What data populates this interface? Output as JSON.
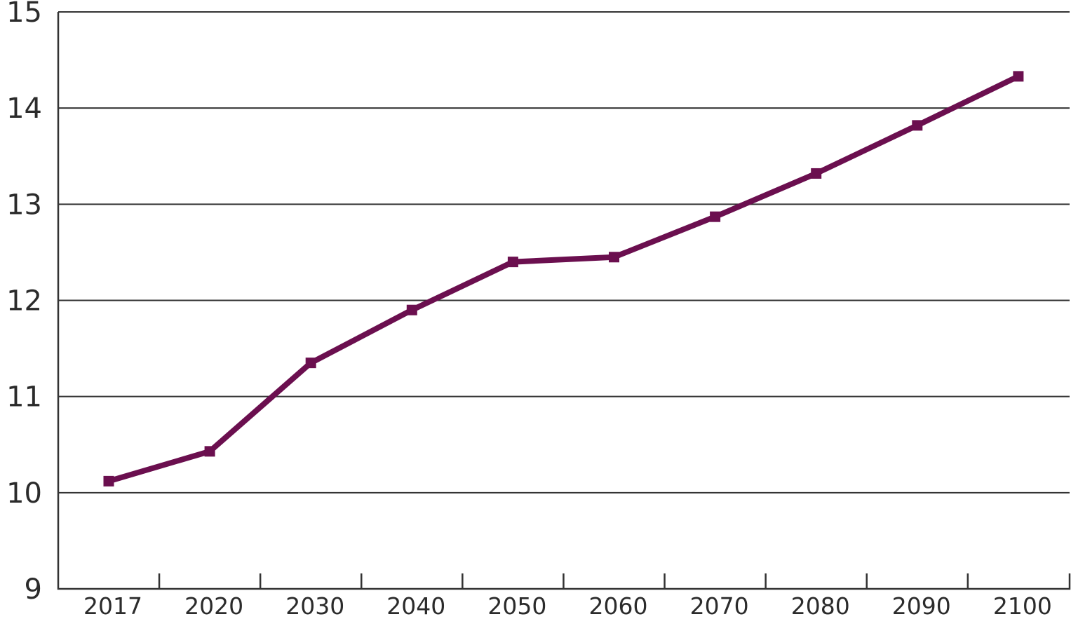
{
  "chart_data": {
    "type": "line",
    "categories": [
      "2017",
      "2020",
      "2030",
      "2040",
      "2050",
      "2060",
      "2070",
      "2080",
      "2090",
      "2100"
    ],
    "series": [
      {
        "values": [
          10.12,
          10.43,
          11.35,
          11.9,
          12.4,
          12.45,
          12.87,
          13.32,
          13.82,
          14.33
        ],
        "color": "#6b0f4f"
      }
    ],
    "ylim": [
      9,
      15
    ],
    "yticks": [
      "9",
      "10",
      "11",
      "12",
      "13",
      "14",
      "15"
    ],
    "grid": true,
    "marker": "square"
  }
}
